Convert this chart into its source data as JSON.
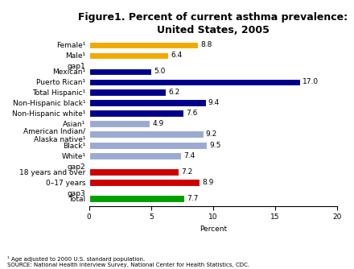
{
  "title": "Figure1. Percent of current asthma prevalence:\nUnited States, 2005",
  "categories": [
    "Female¹",
    "Male¹",
    "gap1",
    "Mexican¹",
    "Puerto Rican¹",
    "Total Hispanic¹",
    "Non-Hispanic black¹",
    "Non-Hispanic white¹",
    "Asian¹",
    "American Indian/\nAlaska native¹",
    "Black¹",
    "White¹",
    "gap2",
    "18 years and over",
    "0–17 years",
    "gap3",
    "Total"
  ],
  "values": [
    8.8,
    6.4,
    null,
    5.0,
    17.0,
    6.2,
    9.4,
    7.6,
    4.9,
    9.2,
    9.5,
    7.4,
    null,
    7.2,
    8.9,
    null,
    7.7
  ],
  "colors": [
    "#F2A900",
    "#F2A900",
    "none",
    "#00008B",
    "#00008B",
    "#00008B",
    "#00008B",
    "#00008B",
    "#9BAAD0",
    "#9BAAD0",
    "#9BAAD0",
    "#9BAAD0",
    "none",
    "#CC0000",
    "#CC0000",
    "none",
    "#00A000"
  ],
  "xlabel": "Percent",
  "xlim": [
    0,
    20
  ],
  "xticks": [
    0,
    5,
    10,
    15,
    20
  ],
  "footnote1": "¹ Age adjusted to 2000 U.S. standard population.",
  "footnote2": "SOURCE: National Health Interview Survey, National Center for Health Statistics, CDC.",
  "background_color": "#FFFFFF",
  "title_fontsize": 9,
  "label_fontsize": 6.5,
  "value_fontsize": 6.5
}
